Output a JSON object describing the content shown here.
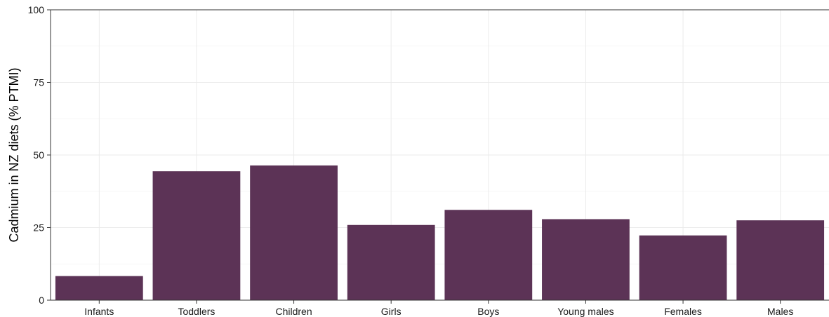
{
  "chart_data": {
    "type": "bar",
    "categories": [
      "Infants",
      "Toddlers",
      "Children",
      "Girls",
      "Boys",
      "Young males",
      "Females",
      "Males"
    ],
    "values": [
      8.3,
      44.4,
      46.4,
      25.9,
      31.1,
      27.9,
      22.3,
      27.5
    ],
    "title": "",
    "xlabel": "",
    "ylabel": "Cadmium in NZ diets (% PTMI)",
    "ylim": [
      0,
      100
    ],
    "yticks": [
      0,
      25,
      50,
      75,
      100
    ],
    "grid": true,
    "bar_color": "#5c3356",
    "grid_color": "#ebebeb",
    "axis_color": "#333333"
  }
}
